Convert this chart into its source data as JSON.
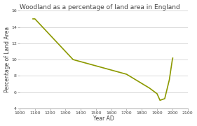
{
  "title": "Woodland as a percentage of land area in England",
  "xlabel": "Year AD",
  "ylabel": "Percentage of Land Area",
  "x_data": [
    1086,
    1100,
    1350,
    1700,
    1850,
    1900,
    1919,
    1950,
    1980,
    2000,
    2003
  ],
  "y_data": [
    15.0,
    15.0,
    10.0,
    8.2,
    6.5,
    5.8,
    5.0,
    5.2,
    7.5,
    10.0,
    10.2
  ],
  "line_color": "#8c9900",
  "line_width": 1.2,
  "xlim": [
    1000,
    2100
  ],
  "ylim": [
    4,
    16
  ],
  "yticks": [
    4,
    6,
    8,
    10,
    12,
    14,
    16
  ],
  "xticks": [
    1000,
    1100,
    1200,
    1300,
    1400,
    1500,
    1600,
    1700,
    1800,
    1900,
    2000,
    2100
  ],
  "background_color": "#ffffff",
  "plot_bg_color": "#ffffff",
  "title_fontsize": 6.5,
  "axis_label_fontsize": 5.5,
  "tick_fontsize": 4.5,
  "grid_color": "#cccccc",
  "grid_linewidth": 0.5
}
